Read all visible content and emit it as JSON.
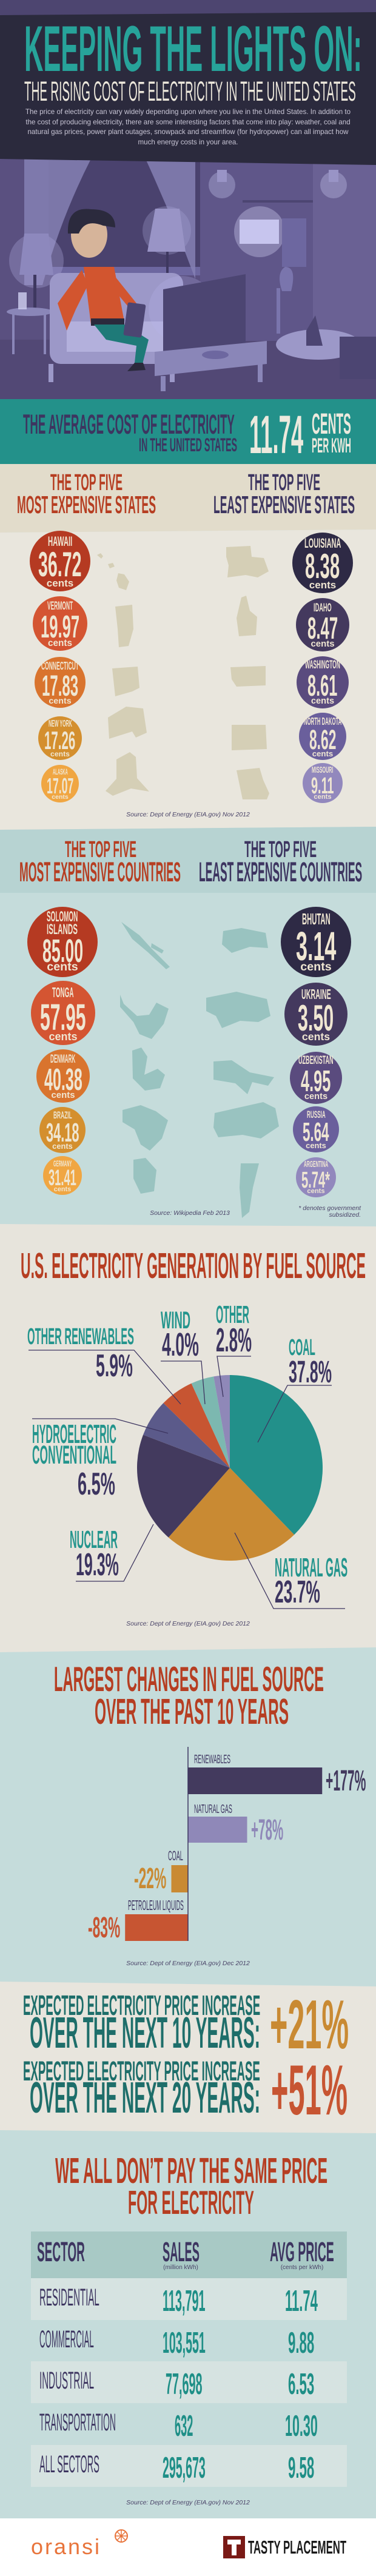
{
  "header": {
    "title": "KEEPING THE LIGHTS ON:",
    "subtitle": "THE RISING COST OF ELECTRICITY IN THE UNITED STATES",
    "intro": "The price of electricity can vary widely depending upon where you live in the United States. In addition to the cost of producing electricity, there are some interesting factors that come into play: weather, coal and natural gas prices, power plant outages, snowpack and streamflow (for hydropower) can all impact how much energy costs in your area."
  },
  "average": {
    "line1": "THE AVERAGE COST OF ELECTRICITY",
    "line2": "IN THE UNITED STATES",
    "value": "11.74",
    "unit1": "CENTS",
    "unit2": "PER KWH"
  },
  "states": {
    "most_heading1": "THE TOP FIVE",
    "most_heading2": "MOST EXPENSIVE STATES",
    "least_heading1": "THE TOP FIVE",
    "least_heading2": "LEAST EXPENSIVE STATES",
    "unit": "cents",
    "most": [
      {
        "name_lines": [
          "HAWAII"
        ],
        "value": "36.72",
        "color": "#b53a22"
      },
      {
        "name_lines": [
          "VERMONT"
        ],
        "value": "19.97",
        "color": "#d45532"
      },
      {
        "name_lines": [
          "CONNECTICUT"
        ],
        "value": "17.83",
        "color": "#d9742e"
      },
      {
        "name_lines": [
          "NEW YORK"
        ],
        "value": "17.26",
        "color": "#d48f2e"
      },
      {
        "name_lines": [
          "ALASKA"
        ],
        "value": "17.07",
        "color": "#f0a642"
      }
    ],
    "least": [
      {
        "name_lines": [
          "LOUISIANA"
        ],
        "value": "8.38",
        "color": "#2e2a45"
      },
      {
        "name_lines": [
          "IDAHO"
        ],
        "value": "8.47",
        "color": "#44395e"
      },
      {
        "name_lines": [
          "WASHINGTON"
        ],
        "value": "8.61",
        "color": "#5a4b7e"
      },
      {
        "name_lines": [
          "NORTH DAKOTA"
        ],
        "value": "8.62",
        "color": "#6a5f9c"
      },
      {
        "name_lines": [
          "MISSOURI"
        ],
        "value": "9.11",
        "color": "#9288bd"
      }
    ],
    "source": "Source: Dept of Energy (EIA.gov) Nov 2012"
  },
  "countries": {
    "most_heading1": "THE TOP FIVE",
    "most_heading2": "MOST EXPENSIVE COUNTRIES",
    "least_heading1": "THE TOP FIVE",
    "least_heading2": "LEAST EXPENSIVE COUNTRIES",
    "unit": "cents",
    "most": [
      {
        "name_lines": [
          "SOLOMON",
          "ISLANDS"
        ],
        "value": "85.00",
        "color": "#b53a22"
      },
      {
        "name_lines": [
          "TONGA"
        ],
        "value": "57.95",
        "color": "#d45532"
      },
      {
        "name_lines": [
          "DENMARK"
        ],
        "value": "40.38",
        "color": "#d9742e"
      },
      {
        "name_lines": [
          "BRAZIL"
        ],
        "value": "34.18",
        "color": "#d48f2e"
      },
      {
        "name_lines": [
          "GERMANY"
        ],
        "value": "31.41",
        "color": "#f0a642"
      }
    ],
    "least": [
      {
        "name_lines": [
          "BHUTAN"
        ],
        "value": "3.14",
        "color": "#2e2a45"
      },
      {
        "name_lines": [
          "UKRAINE"
        ],
        "value": "3.50",
        "color": "#44395e"
      },
      {
        "name_lines": [
          "UZBEKISTAN"
        ],
        "value": "4.95",
        "color": "#5a4b7e"
      },
      {
        "name_lines": [
          "RUSSIA"
        ],
        "value": "5.64",
        "color": "#6a5f9c"
      },
      {
        "name_lines": [
          "ARGENTINA"
        ],
        "value": "5.74*",
        "color": "#9288bd"
      }
    ],
    "source": "Source: Wikipedia Feb 2013",
    "footnote": "* denotes government subsidized."
  },
  "chart_data": [
    {
      "type": "pie",
      "title": "U.S. ELECTRICITY GENERATION BY FUEL SOURCE",
      "unit": "%",
      "start": "12 o'clock, clockwise",
      "slices": [
        {
          "label_lines": [
            "COAL"
          ],
          "value": 37.8,
          "display": "37.8%",
          "color": "#22908a"
        },
        {
          "label_lines": [
            "NATURAL GAS"
          ],
          "value": 23.7,
          "display": "23.7%",
          "color": "#c98a33"
        },
        {
          "label_lines": [
            "NUCLEAR"
          ],
          "value": 19.3,
          "display": "19.3%",
          "color": "#433a5e"
        },
        {
          "label_lines": [
            "HYDROELECTRIC",
            "CONVENTIONAL"
          ],
          "value": 6.5,
          "display": "6.5%",
          "color": "#5b5a8a"
        },
        {
          "label_lines": [
            "OTHER RENEWABLES"
          ],
          "value": 5.9,
          "display": "5.9%",
          "color": "#c75532"
        },
        {
          "label_lines": [
            "WIND"
          ],
          "value": 4.0,
          "display": "4.0%",
          "color": "#7cb8b0"
        },
        {
          "label_lines": [
            "OTHER"
          ],
          "value": 2.8,
          "display": "2.8%",
          "color": "#8f88b8"
        }
      ],
      "source": "Source: Dept of Energy (EIA.gov) Dec 2012"
    },
    {
      "type": "bar",
      "orientation": "horizontal",
      "title_lines": [
        "LARGEST CHANGES IN FUEL SOURCE",
        "OVER THE PAST 10 YEARS"
      ],
      "categories": [
        "RENEWABLES",
        "NATURAL GAS",
        "COAL",
        "PETROLEUM LIQUIDS"
      ],
      "values": [
        177,
        78,
        -22,
        -83
      ],
      "labels": [
        "+177%",
        "+78%",
        "-22%",
        "-83%"
      ],
      "colors": [
        "#433a5e",
        "#8f88b8",
        "#c98a33",
        "#c75532"
      ],
      "unit": "%",
      "source": "Source: Dept of Energy (EIA.gov) Dec 2012"
    }
  ],
  "forecast": [
    {
      "line1": "EXPECTED ELECTRICITY PRICE INCREASE",
      "line2": "OVER THE NEXT 10 YEARS:",
      "value": "+21%",
      "color": "#c98a33"
    },
    {
      "line1": "EXPECTED ELECTRICITY PRICE INCREASE",
      "line2": "OVER THE NEXT 20 YEARS:",
      "value": "+51%",
      "color": "#c75532"
    }
  ],
  "sectors": {
    "title_lines": [
      "WE ALL DON’T PAY THE SAME PRICE",
      "FOR ELECTRICITY"
    ],
    "columns": [
      {
        "label": "SECTOR"
      },
      {
        "label": "SALES",
        "sub": "(million kWh)"
      },
      {
        "label": "AVG PRICE",
        "sub": "(cents per kWh)"
      }
    ],
    "rows": [
      [
        "RESIDENTIAL",
        "113,791",
        "11.74"
      ],
      [
        "COMMERCIAL",
        "103,551",
        "9.88"
      ],
      [
        "INDUSTRIAL",
        "77,698",
        "6.53"
      ],
      [
        "TRANSPORTATION",
        "632",
        "10.30"
      ],
      [
        "ALL SECTORS",
        "295,673",
        "9.58"
      ]
    ],
    "source": "Source: Dept of Energy (EIA.gov) Nov 2012"
  },
  "footer": {
    "logo1": "oransi",
    "logo2": "TASTY PLACEMENT"
  },
  "colors": {
    "teal": "#27a39a",
    "red": "#b63e22",
    "purple": "#3d3560",
    "dark": "#2b2a3d",
    "cream": "#ebe7dc"
  }
}
